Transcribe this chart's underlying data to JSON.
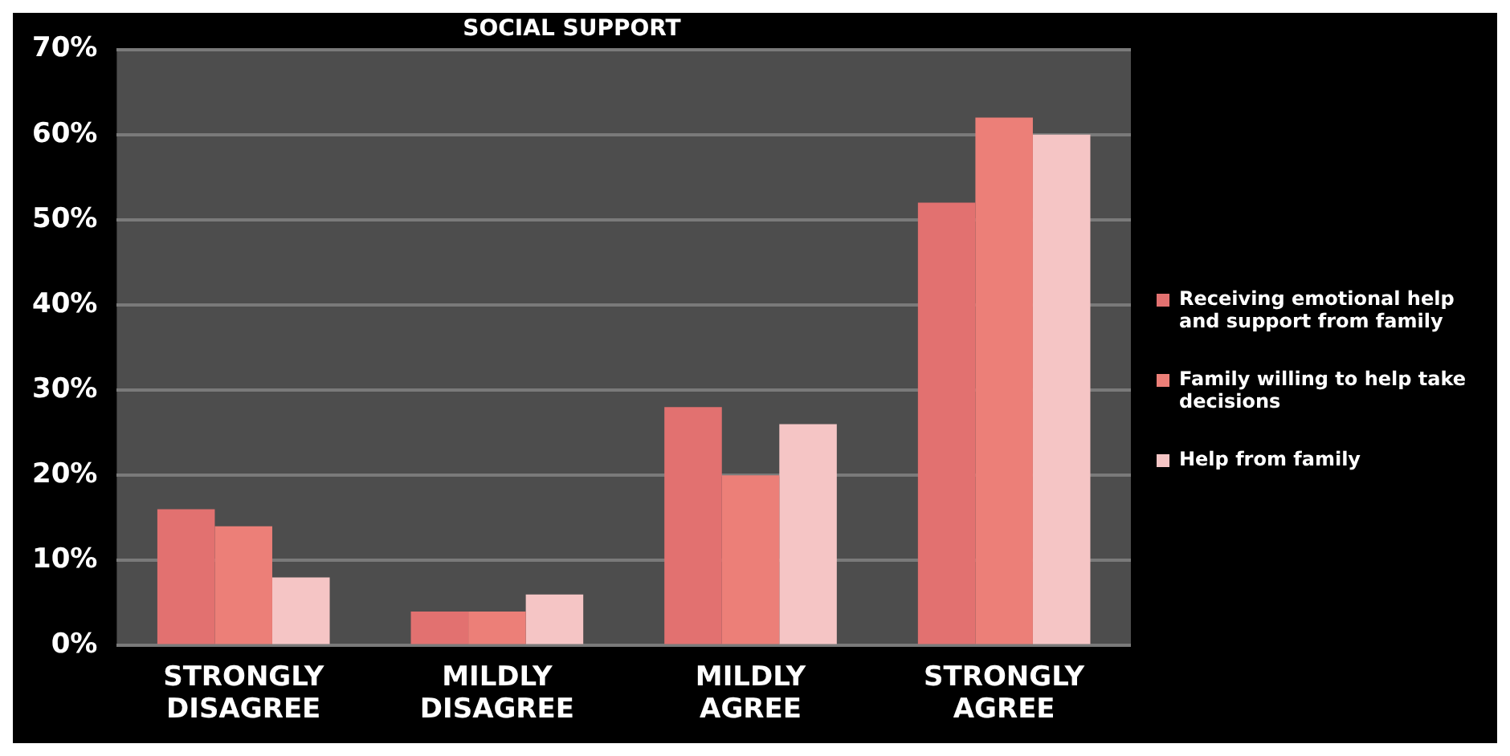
{
  "chart_data": {
    "type": "bar",
    "title": "SOCIAL SUPPORT",
    "categories": [
      "STRONGLY DISAGREE",
      "MILDLY DISAGREE",
      "MILDLY AGREE",
      "STRONGLY AGREE"
    ],
    "series": [
      {
        "name": "Receiving emotional help and support from family",
        "color": "#e27170",
        "values": [
          16,
          4,
          28,
          52
        ]
      },
      {
        "name": "Family willing to help take decisions",
        "color": "#ec7f78",
        "values": [
          14,
          4,
          20,
          62
        ]
      },
      {
        "name": "Help from family",
        "color": "#f5c5c5",
        "values": [
          8,
          6,
          26,
          60
        ]
      }
    ],
    "ylim": [
      0,
      70
    ],
    "yticks": [
      {
        "value": 0,
        "label": "0%"
      },
      {
        "value": 10,
        "label": "10%"
      },
      {
        "value": 20,
        "label": "20%"
      },
      {
        "value": 30,
        "label": "30%"
      },
      {
        "value": 40,
        "label": "40%"
      },
      {
        "value": 50,
        "label": "50%"
      },
      {
        "value": 60,
        "label": "60%"
      },
      {
        "value": 70,
        "label": "70%"
      }
    ],
    "grid": "y",
    "legend": "right"
  }
}
